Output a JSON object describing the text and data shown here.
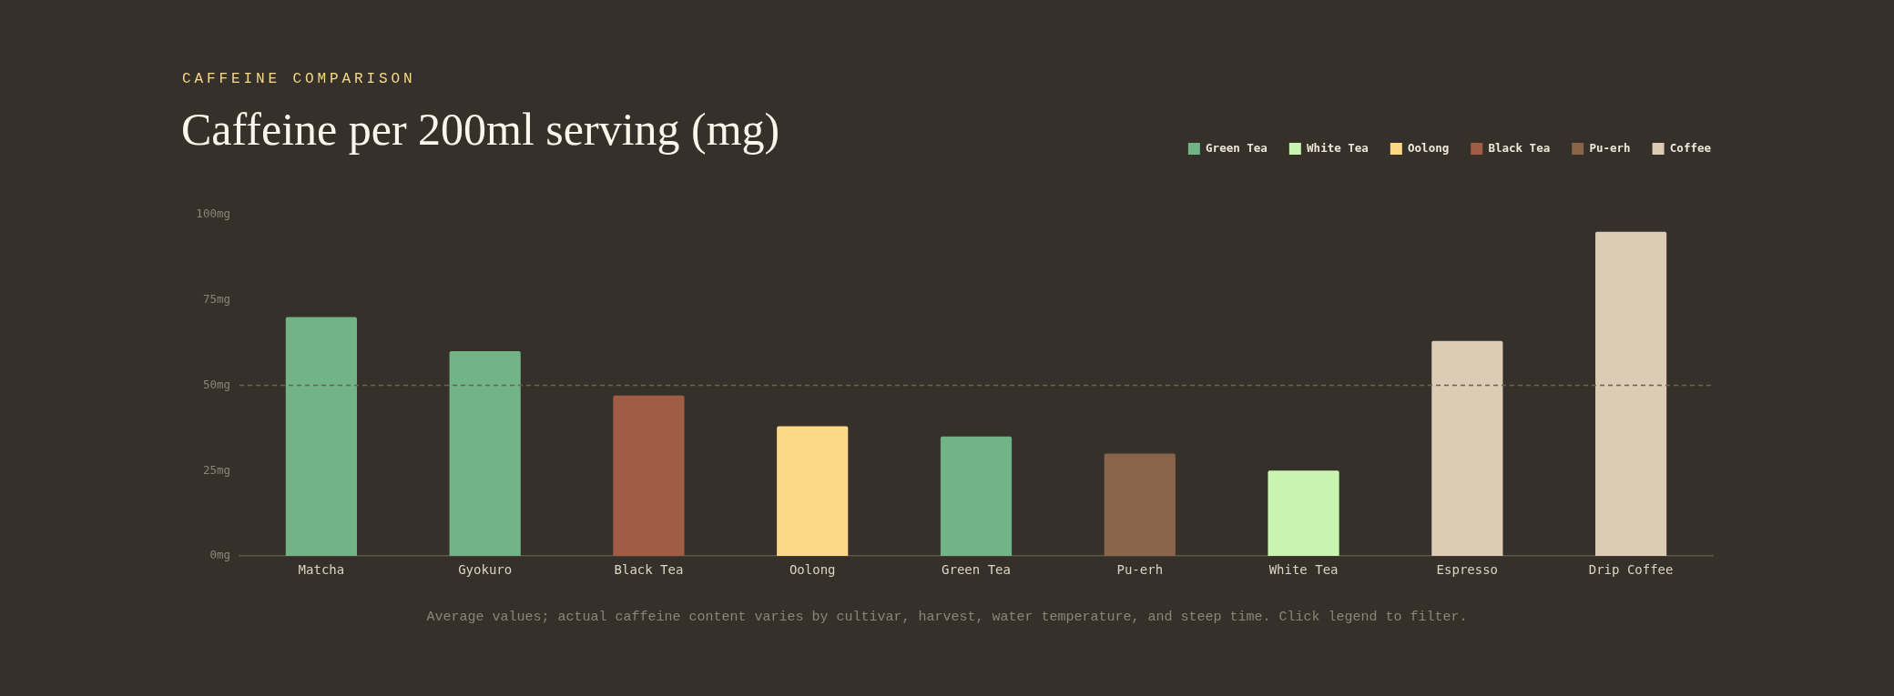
{
  "chart_data": {
    "type": "bar",
    "subtitle": "CAFFEINE COMPARISON",
    "title": "Caffeine per 200ml serving (mg)",
    "categories": [
      "Matcha",
      "Gyokuro",
      "Black Tea",
      "Oolong",
      "Green Tea",
      "Pu-erh",
      "White Tea",
      "Espresso",
      "Drip Coffee"
    ],
    "series": [
      {
        "name": "Green Tea",
        "color": "#72b485",
        "values": [
          70,
          60,
          null,
          null,
          35,
          null,
          null,
          null,
          null
        ]
      },
      {
        "name": "White Tea",
        "color": "#c9f3b0",
        "values": [
          null,
          null,
          null,
          null,
          null,
          null,
          25,
          null,
          null
        ]
      },
      {
        "name": "Oolong",
        "color": "#fdd886",
        "values": [
          null,
          null,
          null,
          38,
          null,
          null,
          null,
          null,
          null
        ]
      },
      {
        "name": "Black Tea",
        "color": "#a05c44",
        "values": [
          null,
          null,
          47,
          null,
          null,
          null,
          null,
          null,
          null
        ]
      },
      {
        "name": "Pu-erh",
        "color": "#8a644a",
        "values": [
          null,
          null,
          null,
          null,
          null,
          30,
          null,
          null,
          null
        ]
      },
      {
        "name": "Coffee",
        "color": "#dccbb5",
        "values": [
          null,
          null,
          null,
          null,
          null,
          null,
          null,
          63,
          95
        ]
      }
    ],
    "ylim": [
      0,
      100
    ],
    "yticks": [
      {
        "value": 0,
        "label": "0mg"
      },
      {
        "value": 25,
        "label": "25mg"
      },
      {
        "value": 50,
        "label": "50mg"
      },
      {
        "value": 75,
        "label": "75mg"
      },
      {
        "value": 100,
        "label": "100mg"
      }
    ],
    "ref_lines": [
      {
        "axis": "y",
        "value": 50,
        "color": "#6b6250",
        "line_style": "dashed"
      }
    ],
    "legend": "top right",
    "annotations": [
      "Average values; actual caffeine content varies by cultivar, harvest, water temperature, and steep time. Click legend to filter."
    ]
  }
}
